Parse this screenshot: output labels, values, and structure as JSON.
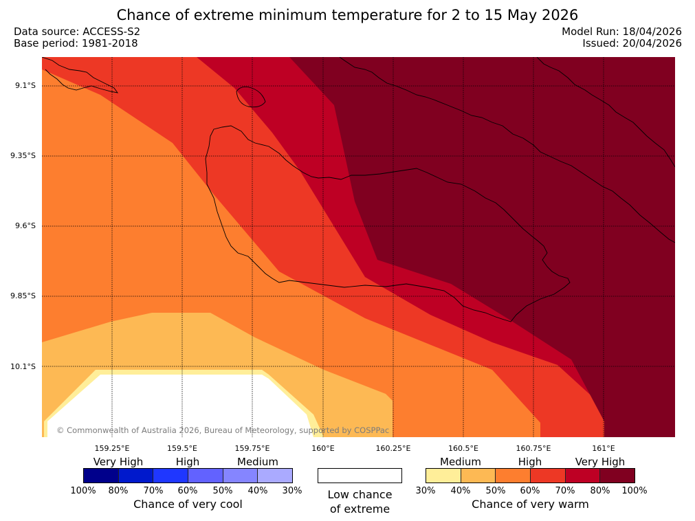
{
  "title": "Chance of extreme minimum temperature for 2 to 15 May 2026",
  "meta": {
    "data_source": "Data source: ACCESS-S2",
    "base_period": "Base period: 1981-2018",
    "model_run": "Model Run: 18/04/2026",
    "issued": "Issued: 20/04/2026"
  },
  "map": {
    "lat_labels": [
      "9.1°S",
      "9.35°S",
      "9.6°S",
      "9.85°S",
      "10.1°S"
    ],
    "lon_labels": [
      "159.25°E",
      "159.5°E",
      "159.75°E",
      "160°E",
      "160.25°E",
      "160.5°E",
      "160.75°E",
      "161°E"
    ],
    "copyright": "© Commonwealth of Australia 2026, Bureau of Meteorology, supported by COSPPac"
  },
  "legend": {
    "cool": {
      "levels": [
        "Very High",
        "High",
        "Medium"
      ],
      "percents": [
        "100%",
        "80%",
        "70%",
        "60%",
        "50%",
        "40%",
        "30%"
      ],
      "colors": [
        "#00008b",
        "#0019cc",
        "#1f37ff",
        "#6262ff",
        "#8585ff",
        "#aaaaff"
      ],
      "title": "Chance of very cool"
    },
    "low": {
      "line1": "Low chance",
      "line2": "of extreme"
    },
    "warm": {
      "levels": [
        "Medium",
        "High",
        "Very High"
      ],
      "percents": [
        "30%",
        "40%",
        "50%",
        "60%",
        "70%",
        "80%",
        "100%"
      ],
      "colors": [
        "#ffee99",
        "#fdb954",
        "#fd7e2f",
        "#ed3825",
        "#be0024",
        "#800020"
      ],
      "title": "Chance of very warm"
    }
  }
}
